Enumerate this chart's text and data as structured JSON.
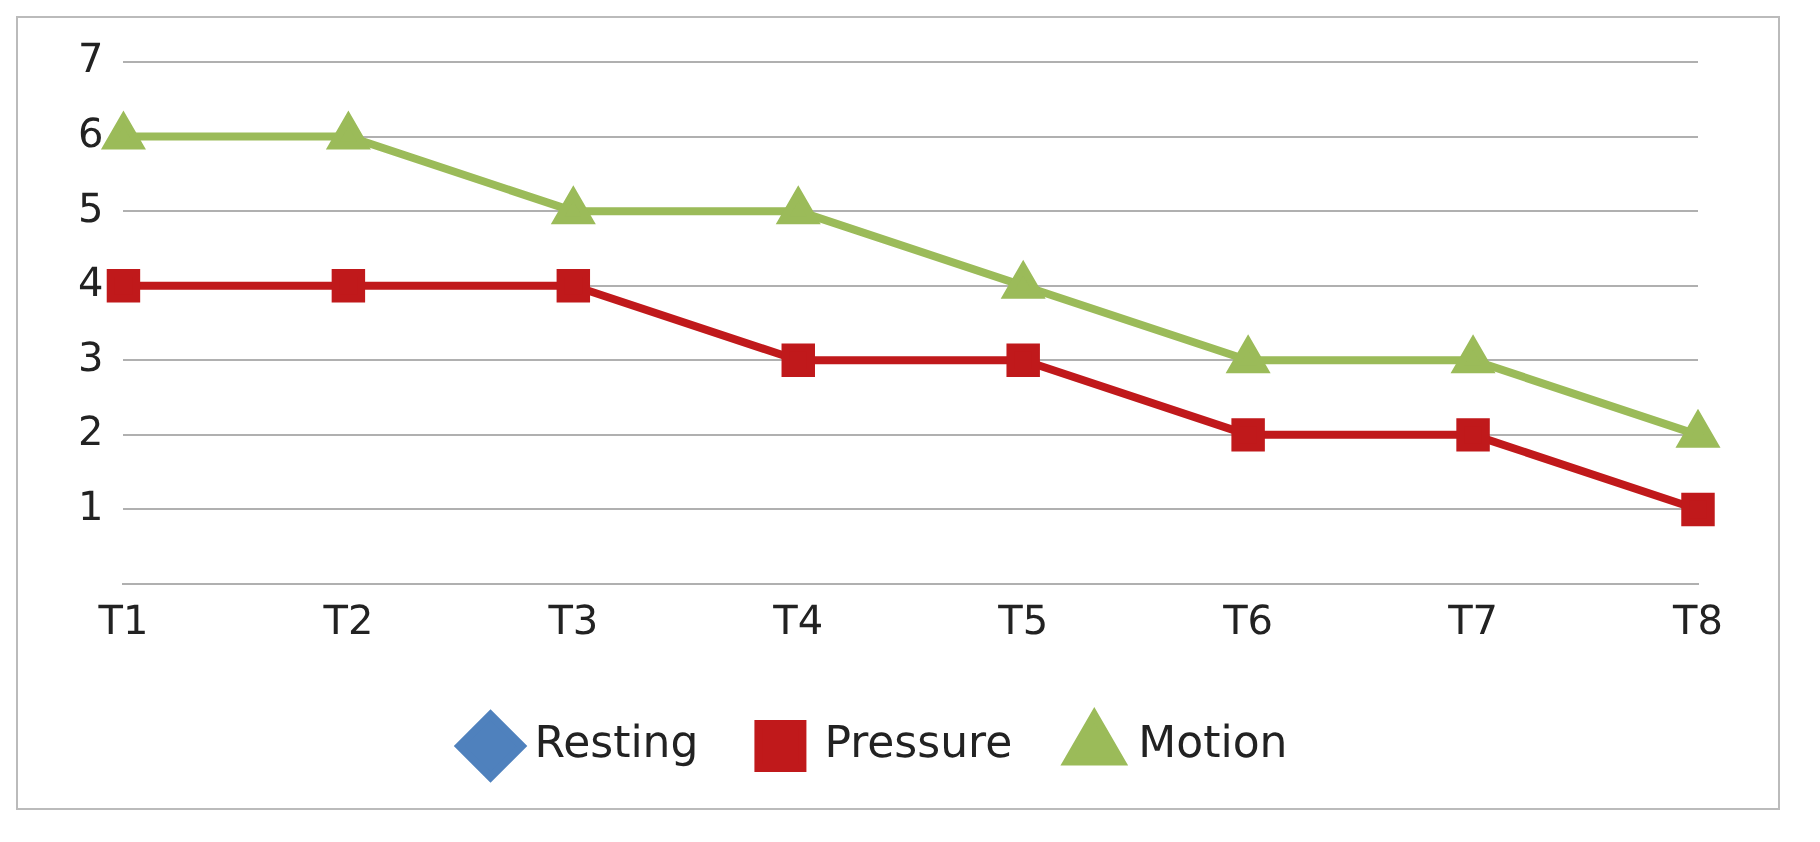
{
  "chart_data": {
    "type": "line",
    "categories": [
      "T1",
      "T2",
      "T3",
      "T4",
      "T5",
      "T6",
      "T7",
      "T8"
    ],
    "series": [
      {
        "name": "Resting",
        "color": "#4f81bd",
        "marker": "diamond",
        "values": [
          null,
          null,
          null,
          null,
          null,
          null,
          null,
          null
        ]
      },
      {
        "name": "Pressure",
        "color": "#c0191b",
        "marker": "square",
        "values": [
          4,
          4,
          4,
          3,
          3,
          2,
          2,
          1
        ]
      },
      {
        "name": "Motion",
        "color": "#9bbb59",
        "marker": "triangle",
        "values": [
          6,
          6,
          5,
          5,
          4,
          3,
          3,
          2
        ]
      }
    ],
    "ylim": [
      0,
      7
    ],
    "yticks": [
      1,
      2,
      3,
      4,
      5,
      6,
      7
    ],
    "grid": "y",
    "legend": "bottom"
  }
}
